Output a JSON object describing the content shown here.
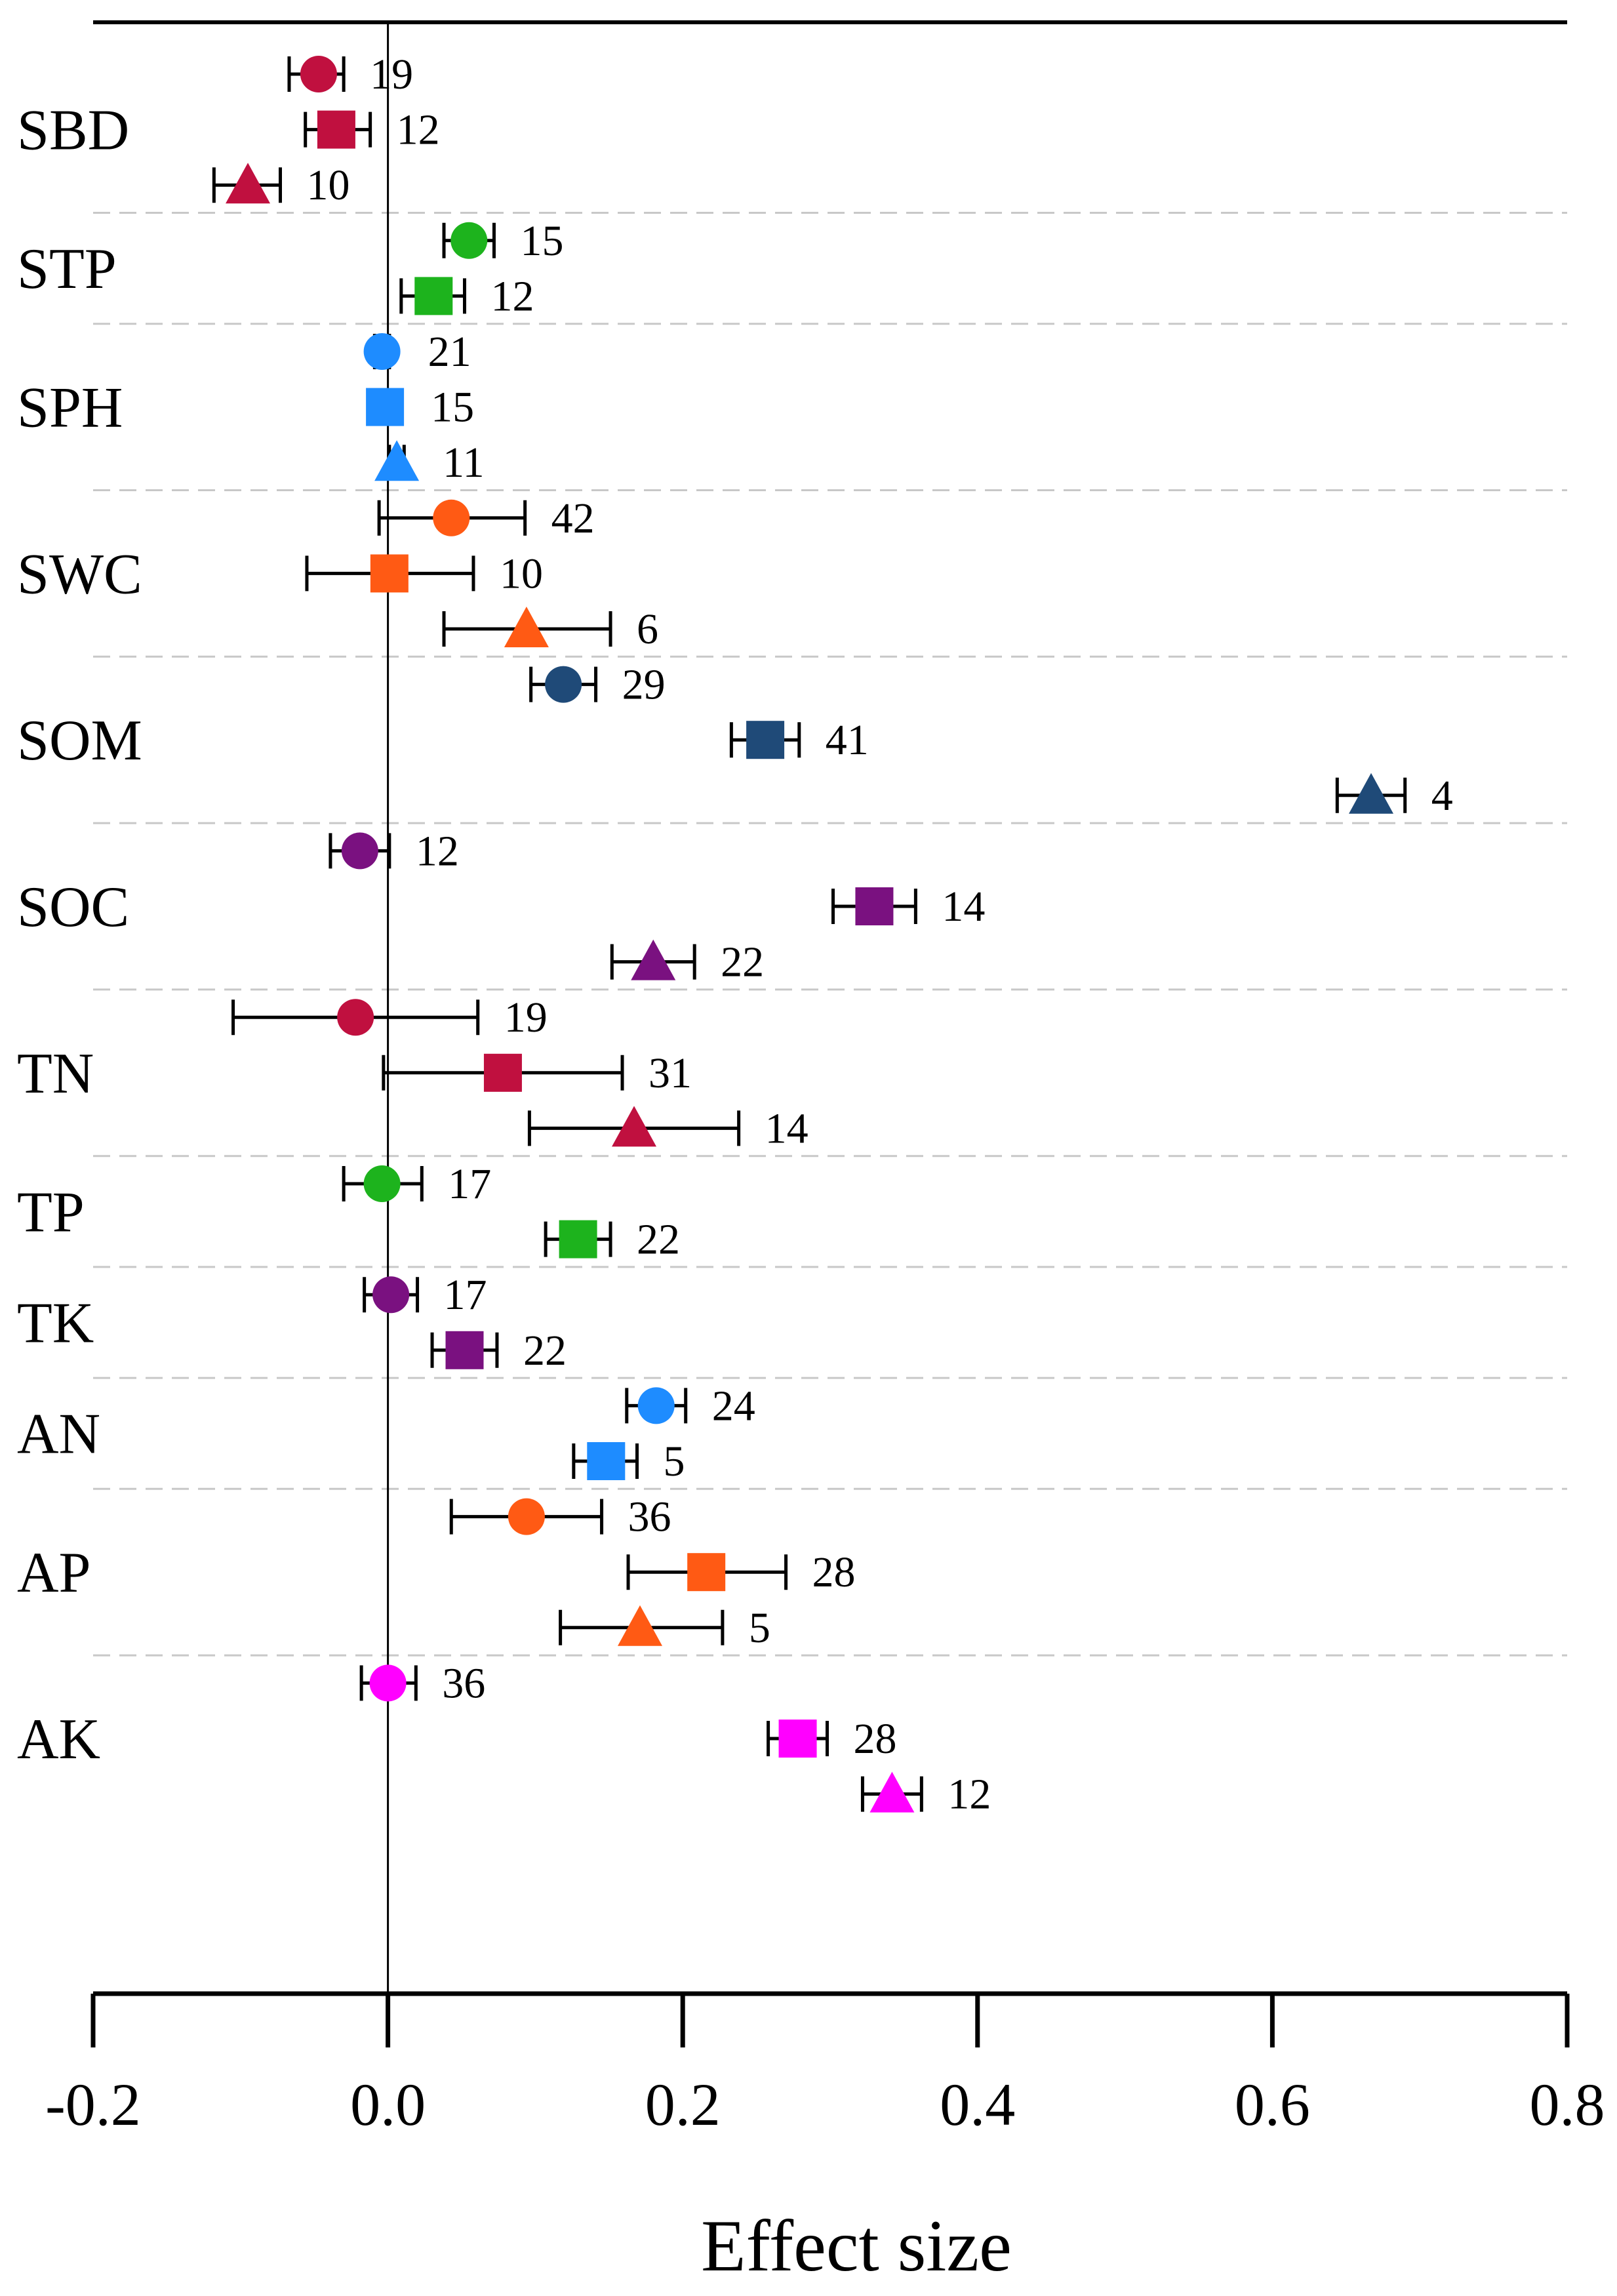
{
  "chart_data": {
    "type": "forest",
    "title": "",
    "xlabel": "Effect size",
    "ylabel": "",
    "xlim": [
      -0.2,
      0.8
    ],
    "xticks": [
      -0.2,
      0.0,
      0.2,
      0.4,
      0.6,
      0.8
    ],
    "xtick_labels": [
      "-0.2",
      "0.0",
      "0.2",
      "0.4",
      "0.6",
      "0.8"
    ],
    "reference_line": 0.0,
    "grid": "dashed horizontal group separators",
    "groups": [
      {
        "label": "SBD",
        "color": "#C0103F",
        "entries": [
          {
            "marker": "circle",
            "value": -0.047,
            "ci": [
              -0.067,
              -0.03
            ],
            "n": "19"
          },
          {
            "marker": "square",
            "value": -0.035,
            "ci": [
              -0.056,
              -0.012
            ],
            "n": "12"
          },
          {
            "marker": "triangle",
            "value": -0.095,
            "ci": [
              -0.118,
              -0.073
            ],
            "n": "10"
          }
        ]
      },
      {
        "label": "STP",
        "color": "#1DB31D",
        "entries": [
          {
            "marker": "circle",
            "value": 0.055,
            "ci": [
              0.038,
              0.072
            ],
            "n": "15"
          },
          {
            "marker": "square",
            "value": 0.031,
            "ci": [
              0.009,
              0.052
            ],
            "n": "12"
          }
        ]
      },
      {
        "label": "SPH",
        "color": "#1E8CFF",
        "entries": [
          {
            "marker": "circle",
            "value": -0.004,
            "ci": [
              -0.009,
              0.001
            ],
            "n": "21"
          },
          {
            "marker": "square",
            "value": -0.002,
            "ci": [
              -0.007,
              0.003
            ],
            "n": "15"
          },
          {
            "marker": "triangle",
            "value": 0.006,
            "ci": [
              0.001,
              0.011
            ],
            "n": "11"
          }
        ]
      },
      {
        "label": "SWC",
        "color": "#FF5A14",
        "entries": [
          {
            "marker": "circle",
            "value": 0.043,
            "ci": [
              -0.006,
              0.093
            ],
            "n": "42"
          },
          {
            "marker": "square",
            "value": 0.001,
            "ci": [
              -0.055,
              0.058
            ],
            "n": "10"
          },
          {
            "marker": "triangle",
            "value": 0.094,
            "ci": [
              0.038,
              0.151
            ],
            "n": "6"
          }
        ]
      },
      {
        "label": "SOM",
        "color": "#1F4A78",
        "entries": [
          {
            "marker": "circle",
            "value": 0.119,
            "ci": [
              0.097,
              0.141
            ],
            "n": "29"
          },
          {
            "marker": "square",
            "value": 0.256,
            "ci": [
              0.233,
              0.279
            ],
            "n": "41"
          },
          {
            "marker": "triangle",
            "value": 0.667,
            "ci": [
              0.644,
              0.69
            ],
            "n": "4"
          }
        ]
      },
      {
        "label": "SOC",
        "color": "#7A1180",
        "entries": [
          {
            "marker": "circle",
            "value": -0.019,
            "ci": [
              -0.039,
              0.001
            ],
            "n": "12"
          },
          {
            "marker": "square",
            "value": 0.33,
            "ci": [
              0.302,
              0.358
            ],
            "n": "14"
          },
          {
            "marker": "triangle",
            "value": 0.18,
            "ci": [
              0.152,
              0.208
            ],
            "n": "22"
          }
        ]
      },
      {
        "label": "TN",
        "color": "#C0103F",
        "entries": [
          {
            "marker": "circle",
            "value": -0.022,
            "ci": [
              -0.105,
              0.061
            ],
            "n": "19"
          },
          {
            "marker": "square",
            "value": 0.078,
            "ci": [
              -0.003,
              0.159
            ],
            "n": "31"
          },
          {
            "marker": "triangle",
            "value": 0.167,
            "ci": [
              0.096,
              0.238
            ],
            "n": "14"
          }
        ]
      },
      {
        "label": "TP",
        "color": "#1DB31D",
        "entries": [
          {
            "marker": "circle",
            "value": -0.004,
            "ci": [
              -0.03,
              0.023
            ],
            "n": "17"
          },
          {
            "marker": "square",
            "value": 0.129,
            "ci": [
              0.107,
              0.151
            ],
            "n": "22"
          }
        ]
      },
      {
        "label": "TK",
        "color": "#7A1180",
        "entries": [
          {
            "marker": "circle",
            "value": 0.002,
            "ci": [
              -0.016,
              0.02
            ],
            "n": "17"
          },
          {
            "marker": "square",
            "value": 0.052,
            "ci": [
              0.03,
              0.074
            ],
            "n": "22"
          }
        ]
      },
      {
        "label": "AN",
        "color": "#1E8CFF",
        "entries": [
          {
            "marker": "circle",
            "value": 0.182,
            "ci": [
              0.162,
              0.202
            ],
            "n": "24"
          },
          {
            "marker": "square",
            "value": 0.148,
            "ci": [
              0.126,
              0.169
            ],
            "n": "5"
          }
        ]
      },
      {
        "label": "AP",
        "color": "#FF5A14",
        "entries": [
          {
            "marker": "circle",
            "value": 0.094,
            "ci": [
              0.043,
              0.145
            ],
            "n": "36"
          },
          {
            "marker": "square",
            "value": 0.216,
            "ci": [
              0.163,
              0.27
            ],
            "n": "28"
          },
          {
            "marker": "triangle",
            "value": 0.171,
            "ci": [
              0.117,
              0.227
            ],
            "n": "5"
          }
        ]
      },
      {
        "label": "AK",
        "color": "#FF00FF",
        "entries": [
          {
            "marker": "circle",
            "value": 0.0,
            "ci": [
              -0.018,
              0.019
            ],
            "n": "36"
          },
          {
            "marker": "square",
            "value": 0.278,
            "ci": [
              0.258,
              0.298
            ],
            "n": "28"
          },
          {
            "marker": "triangle",
            "value": 0.342,
            "ci": [
              0.322,
              0.362
            ],
            "n": "12"
          }
        ]
      }
    ]
  }
}
